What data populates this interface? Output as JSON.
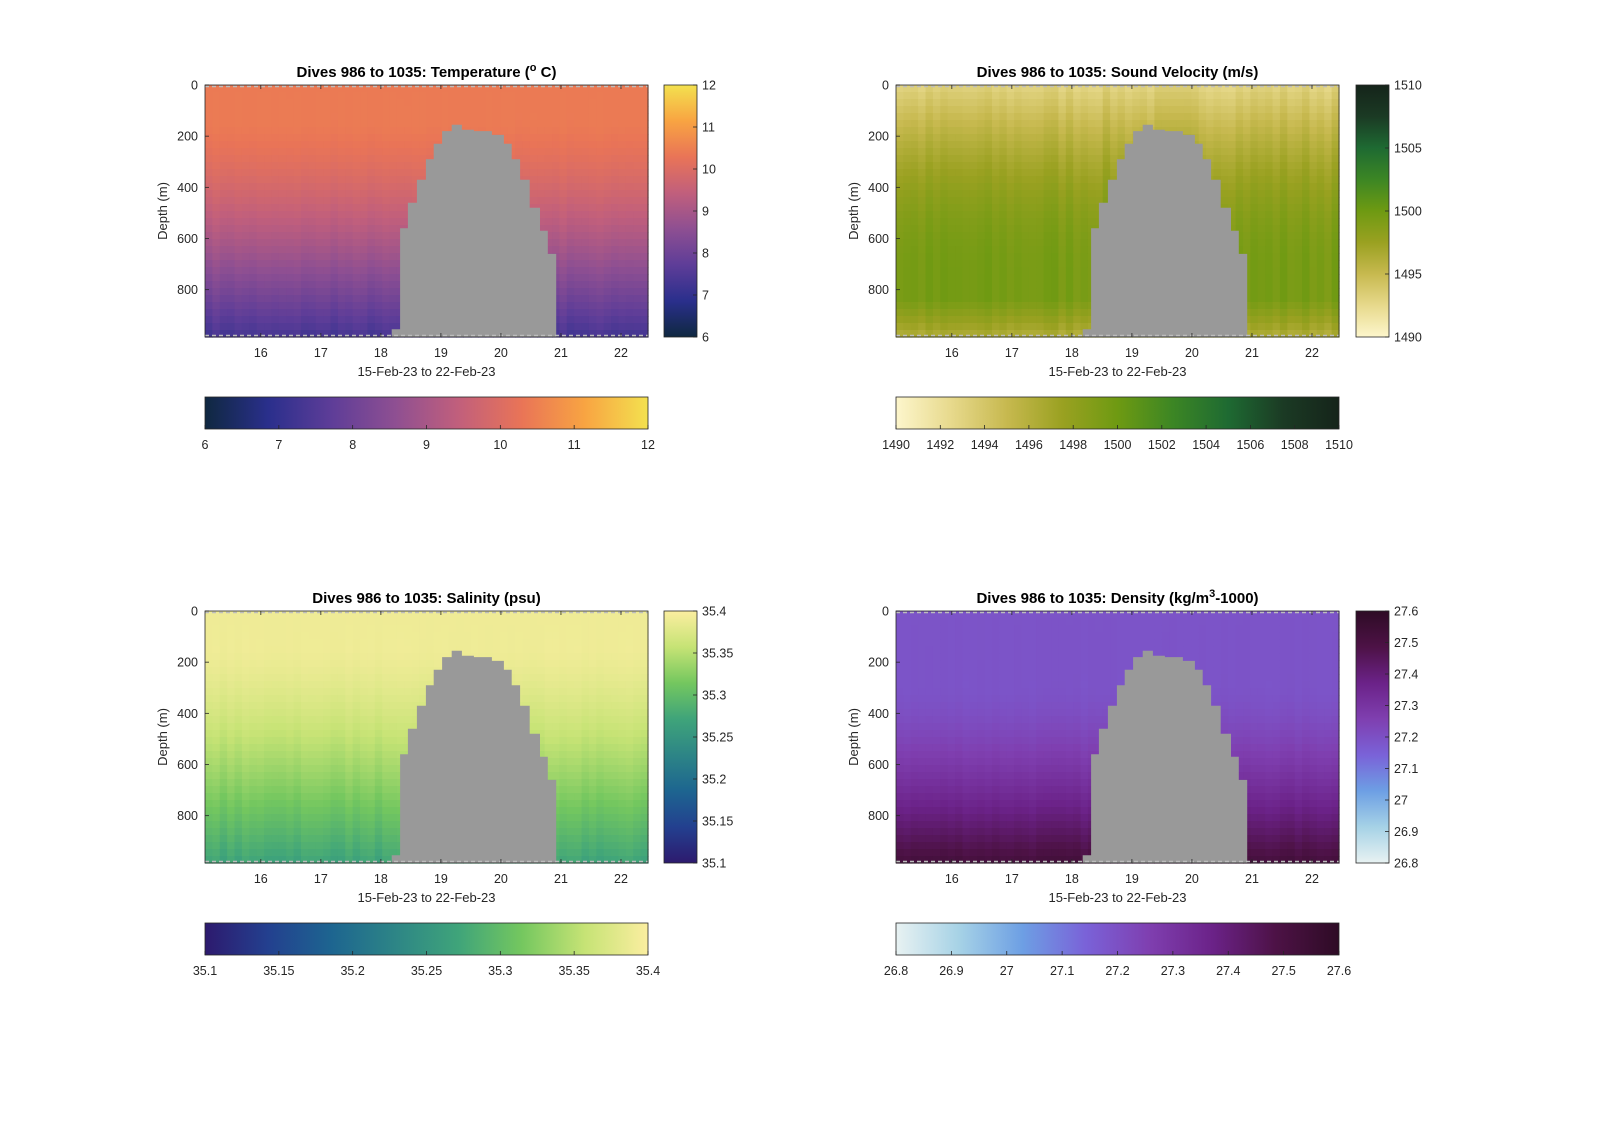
{
  "figure": {
    "background": "#ffffff",
    "landmass_color": "#999999"
  },
  "chart_data": [
    {
      "type": "heatmap",
      "id": "temperature",
      "title": "Dives 986 to 1035: Temperature (",
      "title_sup": "o",
      "title_end": " C)",
      "xlabel": "15-Feb-23 to 22-Feb-23",
      "ylabel": "Depth (m)",
      "x_ticks": [
        "16",
        "17",
        "18",
        "19",
        "20",
        "21",
        "22"
      ],
      "x_range": [
        15.07,
        22.45
      ],
      "y_ticks": [
        "0",
        "200",
        "400",
        "600",
        "800"
      ],
      "y_range": [
        0,
        985
      ],
      "colorbar_ticks": [
        "6",
        "7",
        "8",
        "9",
        "10",
        "11",
        "12"
      ],
      "horizontal_colorbar_ticks": [
        "6",
        "7",
        "8",
        "9",
        "10",
        "11",
        "12"
      ],
      "value_range": [
        6,
        12
      ],
      "colormap": [
        "#0f2840",
        "#2a2f8c",
        "#5e3d98",
        "#8e4f92",
        "#c15f7c",
        "#e97457",
        "#f8a442",
        "#f3e14f"
      ],
      "surface_value": 10.4,
      "deep_value": 7.3,
      "gradient": "warm_surface"
    },
    {
      "type": "heatmap",
      "id": "sound_velocity",
      "title": "Dives 986 to 1035: Sound Velocity (m/s)",
      "xlabel": "15-Feb-23 to 22-Feb-23",
      "ylabel": "Depth (m)",
      "x_ticks": [
        "16",
        "17",
        "18",
        "19",
        "20",
        "21",
        "22"
      ],
      "x_range": [
        15.07,
        22.45
      ],
      "y_ticks": [
        "0",
        "200",
        "400",
        "600",
        "800"
      ],
      "y_range": [
        0,
        985
      ],
      "colorbar_ticks": [
        "1490",
        "1495",
        "1500",
        "1505",
        "1510"
      ],
      "horizontal_colorbar_ticks": [
        "1490",
        "1492",
        "1494",
        "1496",
        "1498",
        "1500",
        "1502",
        "1504",
        "1506",
        "1508",
        "1510"
      ],
      "value_range": [
        1490,
        1510
      ],
      "colormap": [
        "#fdf6cc",
        "#e7d98c",
        "#c7b94f",
        "#9aa121",
        "#6e9a12",
        "#3c8624",
        "#1e6a32",
        "#1b3a24",
        "#15241a"
      ],
      "surface_value": 1493,
      "deep_value": 1499.5,
      "gradient": "mid_peak"
    },
    {
      "type": "heatmap",
      "id": "salinity",
      "title": "Dives 986 to 1035: Salinity (psu)",
      "xlabel": "15-Feb-23 to 22-Feb-23",
      "ylabel": "Depth (m)",
      "x_ticks": [
        "16",
        "17",
        "18",
        "19",
        "20",
        "21",
        "22"
      ],
      "x_range": [
        15.07,
        22.45
      ],
      "y_ticks": [
        "0",
        "200",
        "400",
        "600",
        "800"
      ],
      "y_range": [
        0,
        985
      ],
      "colorbar_ticks": [
        "35.1",
        "35.15",
        "35.2",
        "35.25",
        "35.3",
        "35.35",
        "35.4"
      ],
      "horizontal_colorbar_ticks": [
        "35.1",
        "35.15",
        "35.2",
        "35.25",
        "35.3",
        "35.35",
        "35.4"
      ],
      "value_range": [
        35.1,
        35.4
      ],
      "colormap": [
        "#2d1a6e",
        "#23408f",
        "#1d6590",
        "#2d8586",
        "#3fa47a",
        "#74c75f",
        "#c6e375",
        "#fbeea0"
      ],
      "surface_value": 35.39,
      "deep_value": 35.27,
      "gradient": "warm_surface"
    },
    {
      "type": "heatmap",
      "id": "density",
      "title": "Dives 986 to 1035: Density (kg/m",
      "title_sup": "3",
      "title_end": "-1000)",
      "xlabel": "15-Feb-23 to 22-Feb-23",
      "ylabel": "Depth (m)",
      "x_ticks": [
        "16",
        "17",
        "18",
        "19",
        "20",
        "21",
        "22"
      ],
      "x_range": [
        15.07,
        22.45
      ],
      "y_ticks": [
        "0",
        "200",
        "400",
        "600",
        "800"
      ],
      "y_range": [
        0,
        985
      ],
      "colorbar_ticks": [
        "26.8",
        "26.9",
        "27",
        "27.1",
        "27.2",
        "27.3",
        "27.4",
        "27.5",
        "27.6"
      ],
      "horizontal_colorbar_ticks": [
        "26.8",
        "26.9",
        "27",
        "27.1",
        "27.2",
        "27.3",
        "27.4",
        "27.5",
        "27.6"
      ],
      "value_range": [
        26.8,
        27.6
      ],
      "colormap": [
        "#e8f2f2",
        "#a6d2e6",
        "#6d9fe4",
        "#7a62d8",
        "#7f3fb0",
        "#6b2288",
        "#4d1246",
        "#2e0b25"
      ],
      "surface_value": 27.19,
      "deep_value": 27.52,
      "gradient": "dense_deep"
    }
  ]
}
